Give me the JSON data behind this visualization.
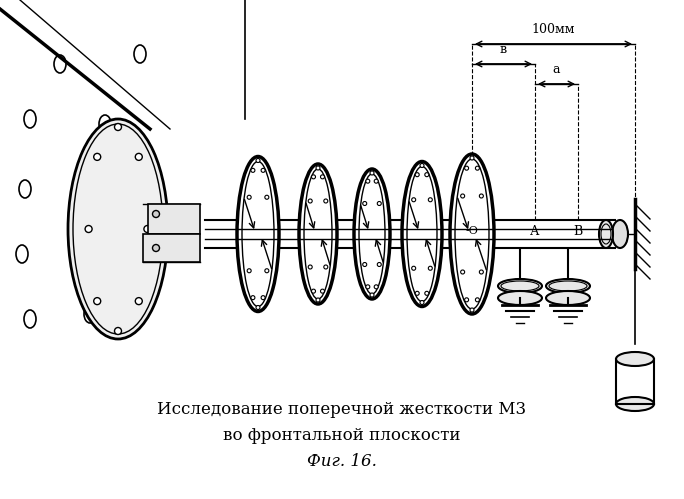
{
  "title_line1": "Исследование поперечной жесткости М3",
  "title_line2": "во фронтальной плоскости",
  "caption": "Фиг. 16.",
  "label_100mm": "100мм",
  "label_b": "в",
  "label_a": "a",
  "label_O": "-О",
  "label_A": "А",
  "label_B": "В",
  "bg_color": "#ffffff",
  "line_color": "#000000",
  "title_fontsize": 12,
  "caption_fontsize": 12
}
